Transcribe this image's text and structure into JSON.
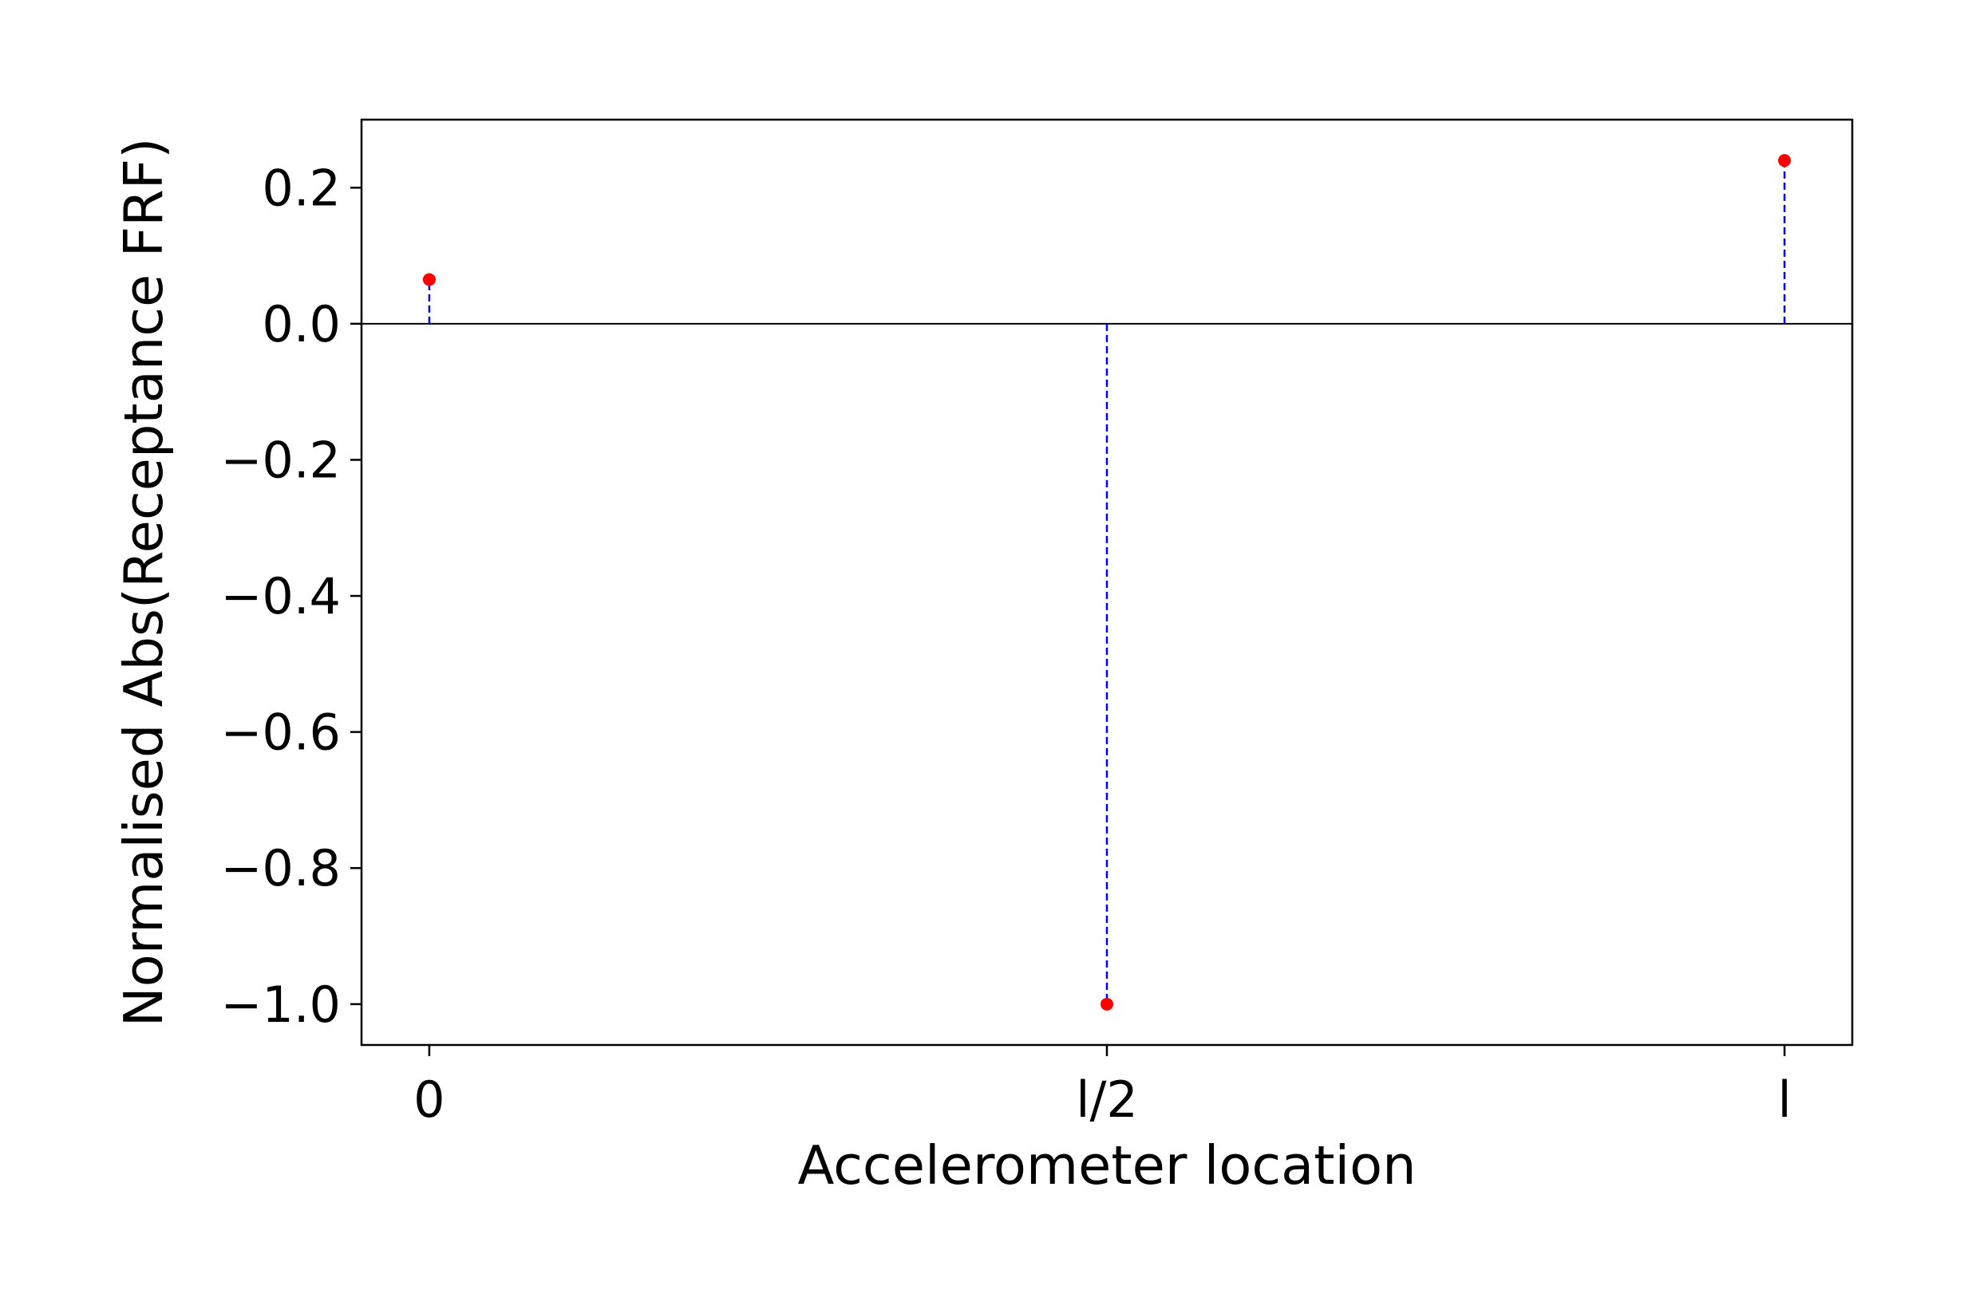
{
  "chart_data": {
    "type": "stem",
    "title": "",
    "xlabel": "Accelerometer location",
    "ylabel": "Normalised Abs(Receptance FRF)",
    "categories": [
      "0",
      "l/2",
      "l"
    ],
    "values": [
      0.065,
      -1.0,
      0.24
    ],
    "xlim": [
      -0.1,
      2.1
    ],
    "ylim": [
      -1.06,
      0.3
    ],
    "yticks": [
      0.2,
      0.0,
      -0.2,
      -0.4,
      -0.6,
      -0.8,
      -1.0
    ],
    "ytick_labels": [
      "0.2",
      "0.0",
      "−0.2",
      "−0.4",
      "−0.6",
      "−0.8",
      "−1.0"
    ],
    "baseline": 0.0,
    "grid": false,
    "legend": "none",
    "colors": {
      "marker": "#ff0000",
      "stem": "#0000ff",
      "baseline": "#000000",
      "axes": "#000000"
    }
  }
}
